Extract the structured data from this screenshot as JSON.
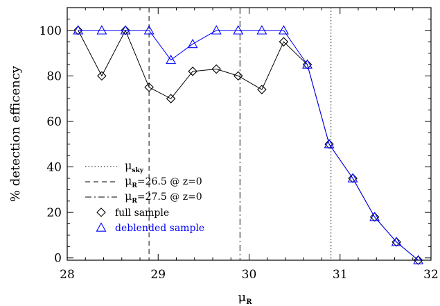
{
  "chart_data": {
    "type": "line",
    "xlim": [
      28,
      32
    ],
    "ylim": [
      -1,
      110
    ],
    "x_ticks": [
      28,
      29,
      30,
      31,
      32
    ],
    "y_ticks": [
      0,
      20,
      40,
      60,
      80,
      100
    ],
    "x_tick_labels": [
      "28",
      "29",
      "30",
      "31",
      "32"
    ],
    "y_tick_labels": [
      "0",
      "20",
      "40",
      "60",
      "80",
      "100"
    ],
    "xlabel": "μ",
    "xlabel_sub": "R",
    "ylabel": "% detection efficency",
    "vertical_lines": [
      {
        "x": 30.9,
        "style": "dotted",
        "legend_main": "μ",
        "legend_sub": "sky",
        "legend_rest": ""
      },
      {
        "x": 28.9,
        "style": "dashed",
        "legend_main": "μ",
        "legend_sub": "R",
        "legend_rest": "=26.5 @ z=0"
      },
      {
        "x": 29.9,
        "style": "dashdot",
        "legend_main": "μ",
        "legend_sub": "R",
        "legend_rest": "=27.5 @ z=0"
      }
    ],
    "series": [
      {
        "name": "full sample",
        "marker": "diamond",
        "color": "#000000",
        "x": [
          28.12,
          28.38,
          28.64,
          28.9,
          29.14,
          29.38,
          29.64,
          29.88,
          30.14,
          30.38,
          30.64,
          30.88,
          31.14,
          31.38,
          31.62,
          31.86
        ],
        "y": [
          100,
          80,
          100,
          75,
          70,
          82,
          83,
          80,
          74,
          95,
          85,
          50,
          35,
          18,
          7,
          -1
        ]
      },
      {
        "name": "deblended sample",
        "marker": "triangle",
        "color": "#0000ff",
        "x": [
          28.12,
          28.38,
          28.64,
          28.9,
          29.14,
          29.38,
          29.64,
          29.88,
          30.14,
          30.38,
          30.64,
          30.88,
          31.14,
          31.38,
          31.62,
          31.86
        ],
        "y": [
          100,
          100,
          100,
          100,
          87,
          94,
          100,
          100,
          100,
          100,
          85,
          50,
          35,
          18,
          7,
          -1
        ]
      }
    ],
    "legend_position": "bottom-left",
    "grid": false
  }
}
